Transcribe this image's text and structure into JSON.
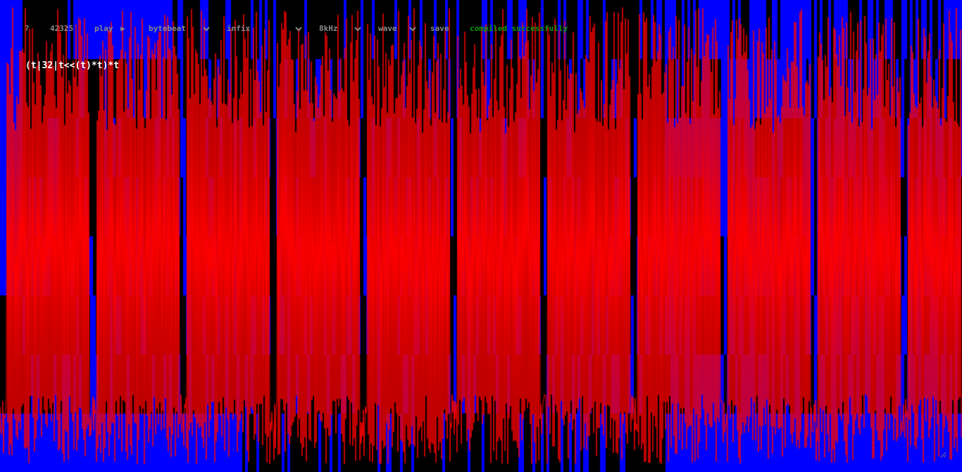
{
  "toolbar": {
    "help_label": "?",
    "time_value": "42325",
    "play_label": "play",
    "play_icon": "▶",
    "mode_select": "bytebeat",
    "syntax_select": "infix",
    "rate_select": "8kHz",
    "view_select": "wave",
    "save_label": "save",
    "status_text": "compiled successfully"
  },
  "editor": {
    "code": "(t|32|t<<(t)*t)*t"
  },
  "colors": {
    "background": "#000000",
    "waveform": "#ff0000",
    "blocks": "#0000ff",
    "toolbar_text": "#8a8a8a",
    "status": "#0a9a0a",
    "code": "#ffffff"
  },
  "icons": {
    "play": "play-icon",
    "dropdown": "chevron-down-icon",
    "resize": "resize-grip-icon"
  }
}
